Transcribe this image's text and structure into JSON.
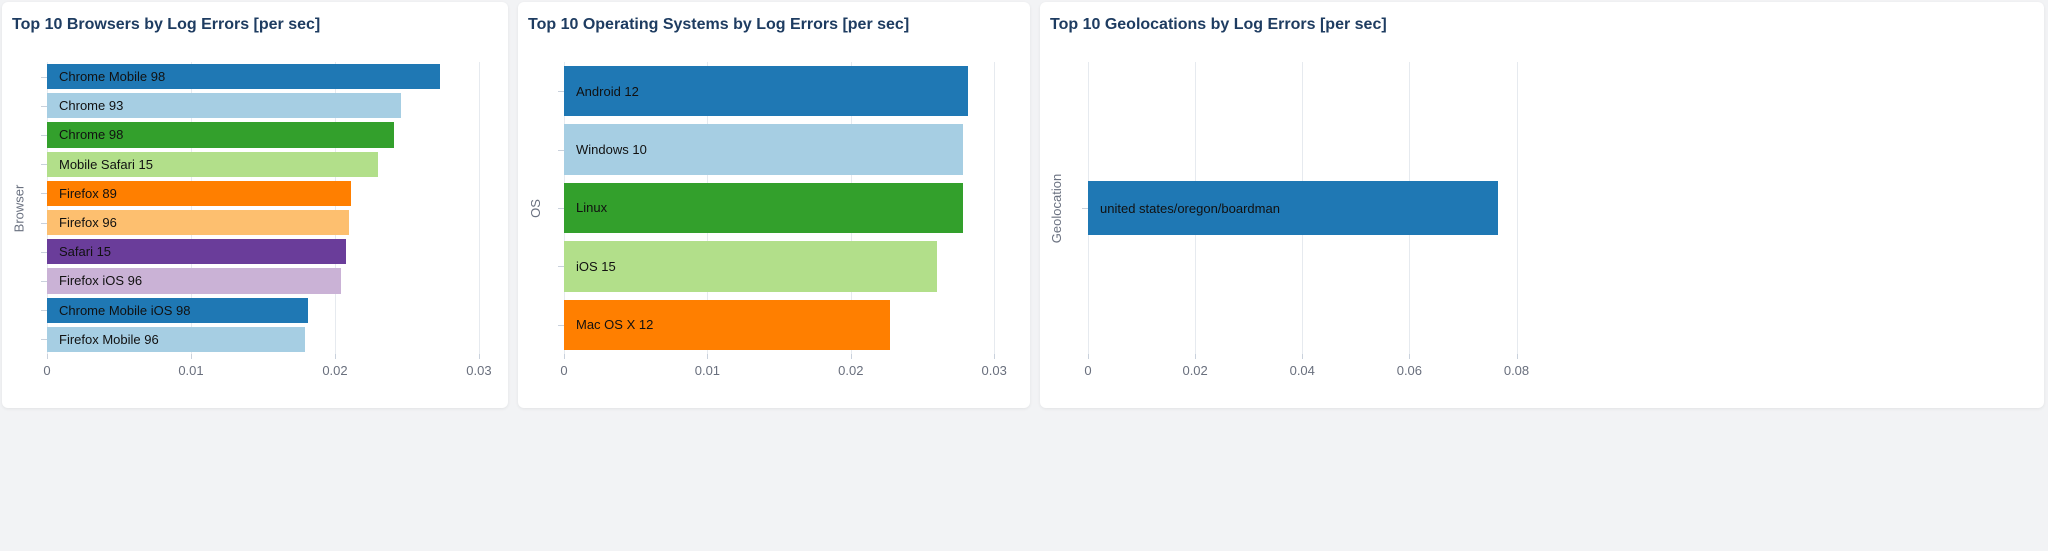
{
  "theme": {
    "page_background": "#f2f3f5",
    "panel_background": "#ffffff",
    "title_color": "#1e3c61",
    "axis_text_color": "#696f7d",
    "y_axis_title_color": "#6a7180",
    "grid_color": "#e6eaef",
    "bar_label_color": "#111111"
  },
  "chart_data": [
    {
      "type": "bar",
      "orientation": "horizontal",
      "title": "Top 10 Browsers by Log Errors [per sec]",
      "ylabel": "Browser",
      "xlabel": "",
      "categories": [
        "Chrome Mobile 98",
        "Chrome 93",
        "Chrome 98",
        "Mobile Safari 15",
        "Firefox 89",
        "Firefox 96",
        "Safari 15",
        "Firefox iOS 96",
        "Chrome Mobile iOS 98",
        "Firefox Mobile 96"
      ],
      "values": [
        0.0273,
        0.0246,
        0.0241,
        0.023,
        0.0211,
        0.021,
        0.0208,
        0.0204,
        0.0181,
        0.0179
      ],
      "colors": [
        "#1f78b4",
        "#a6cee3",
        "#33a02c",
        "#b2df8a",
        "#ff7f00",
        "#fdbf6f",
        "#6a3d9a",
        "#cab2d6",
        "#1f78b4",
        "#a6cee3"
      ],
      "x_ticks": [
        0,
        0.01,
        0.02,
        0.03
      ],
      "x_tick_labels": [
        "0",
        "0.01",
        "0.02",
        "0.03"
      ],
      "xlim": [
        0,
        0.0316
      ],
      "grid": true,
      "legend": false
    },
    {
      "type": "bar",
      "orientation": "horizontal",
      "title": "Top 10 Operating Systems by Log Errors [per sec]",
      "ylabel": "OS",
      "xlabel": "",
      "categories": [
        "Android 12",
        "Windows 10",
        "Linux",
        "iOS 15",
        "Mac OS X 12"
      ],
      "values": [
        0.0282,
        0.0278,
        0.0278,
        0.026,
        0.0227
      ],
      "colors": [
        "#1f78b4",
        "#a6cee3",
        "#33a02c",
        "#b2df8a",
        "#ff7f00"
      ],
      "x_ticks": [
        0,
        0.01,
        0.02,
        0.03
      ],
      "x_tick_labels": [
        "0",
        "0.01",
        "0.02",
        "0.03"
      ],
      "xlim": [
        0,
        0.0318
      ],
      "grid": true,
      "legend": false
    },
    {
      "type": "bar",
      "orientation": "horizontal",
      "title": "Top 10 Geolocations by Log Errors [per sec]",
      "ylabel": "Geolocation",
      "xlabel": "",
      "categories": [
        "united states/oregon/boardman"
      ],
      "values": [
        0.0765
      ],
      "colors": [
        "#1f78b4"
      ],
      "x_ticks": [
        0,
        0.02,
        0.04,
        0.06,
        0.08
      ],
      "x_tick_labels": [
        "0",
        "0.02",
        "0.04",
        "0.06",
        "0.08"
      ],
      "xlim": [
        0,
        0.174
      ],
      "grid": true,
      "legend": false
    }
  ]
}
